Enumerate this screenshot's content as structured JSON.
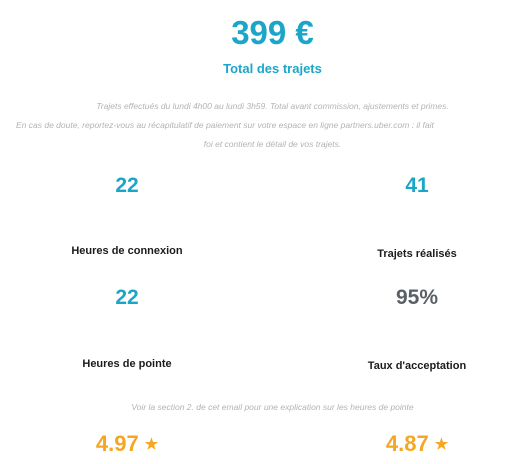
{
  "summary": {
    "total_amount": "399 €",
    "total_label": "Total des trajets",
    "note_line1": "Trajets effectués du lundi 4h00 au lundi 3h59. Total avant commission, ajustements et primes.",
    "note_line2": "En cas de doute, reportez-vous au récapitulatif de paiement sur votre espace en ligne partners.uber.com : il fait",
    "note_line3": "foi et contient le détail de vos trajets."
  },
  "stats": {
    "connection_hours": {
      "value": "22",
      "label": "Heures de connexion"
    },
    "trips_done": {
      "value": "41",
      "label": "Trajets réalisés"
    },
    "peak_hours": {
      "value": "22",
      "label": "Heures de pointe"
    },
    "acceptance_rate": {
      "value": "95%",
      "label": "Taux d'acceptation"
    }
  },
  "peak_note": "Voir la section 2. de cet email pour une explication sur les heures de pointe",
  "ratings": {
    "left": {
      "value": "4.97",
      "icon": "star-icon",
      "glyph": "★"
    },
    "right": {
      "value": "4.87",
      "icon": "star-icon",
      "glyph": "★"
    }
  },
  "colors": {
    "accent": "#1ba6c9",
    "rate_value": "#5a6066",
    "rating": "#f5a623",
    "note": "#b3b3b3"
  }
}
